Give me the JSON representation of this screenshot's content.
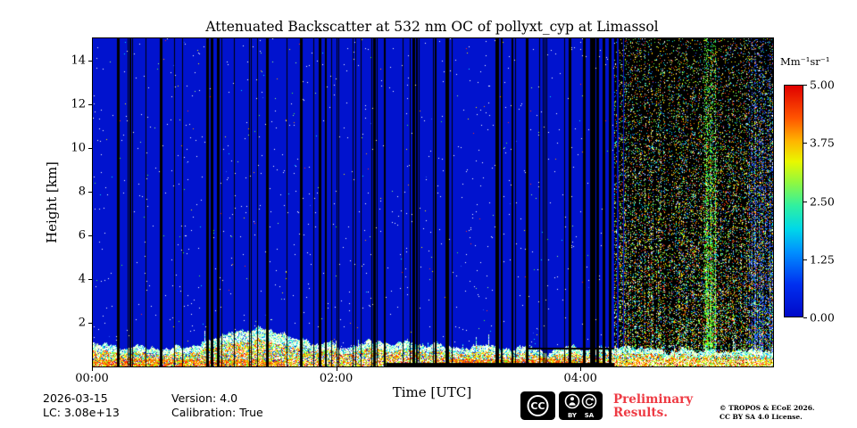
{
  "title": "Attenuated Backscatter at 532 nm OC of pollyxt_cyp at Limassol",
  "chart_data": {
    "type": "heatmap",
    "title": "Attenuated Backscatter at 532 nm OC of pollyxt_cyp at Limassol",
    "xlabel": "Time [UTC]",
    "ylabel": "Height [km]",
    "x_ticks": [
      {
        "label": "00:00",
        "hours": 0
      },
      {
        "label": "02:00",
        "hours": 2
      },
      {
        "label": "04:00",
        "hours": 4
      }
    ],
    "x_range_hours": [
      0,
      5.57
    ],
    "y_ticks": [
      2,
      4,
      6,
      8,
      10,
      12,
      14
    ],
    "ylim": [
      0,
      15
    ],
    "grid": false,
    "legend": "colorbar-right",
    "colorbar": {
      "label": "Mm⁻¹sr⁻¹",
      "range": [
        0,
        5
      ],
      "colormap": "jet",
      "ticks": [
        {
          "label": "5.00",
          "value": 5.0
        },
        {
          "label": "3.75",
          "value": 3.75
        },
        {
          "label": "2.50",
          "value": 2.5
        },
        {
          "label": "1.25",
          "value": 1.25
        },
        {
          "label": "0.00",
          "value": 0.0
        }
      ],
      "gradient_stops": [
        {
          "pos": 0.0,
          "color": "#0009c8"
        },
        {
          "pos": 0.14,
          "color": "#0030f0"
        },
        {
          "pos": 0.28,
          "color": "#0090ff"
        },
        {
          "pos": 0.38,
          "color": "#00d8e8"
        },
        {
          "pos": 0.48,
          "color": "#30f0a0"
        },
        {
          "pos": 0.58,
          "color": "#90f840"
        },
        {
          "pos": 0.67,
          "color": "#e8f800"
        },
        {
          "pos": 0.76,
          "color": "#ffb400"
        },
        {
          "pos": 0.86,
          "color": "#ff5400"
        },
        {
          "pos": 1.0,
          "color": "#e00000"
        }
      ]
    },
    "features": {
      "background_value_mm_sr": 0.0,
      "aerosol_layer": {
        "description": "Near-surface aerosol/cloud layer below ~1-2 km: white high-backscatter tops, red/orange values near ground, strongest on left (00:00-01:00) and around 02:30-03:30",
        "top_km_min": 0.5,
        "top_km_max": 2.2
      },
      "data_gaps": {
        "description": "Thin vertical black no-data stripes between 00:00 and ~04:20, with a thick cluster near 01:00",
        "thick_positions_hours": [
          0.2,
          0.55,
          0.93,
          0.97,
          1.02,
          1.42,
          1.7,
          1.85,
          2.3,
          2.62,
          2.9,
          3.3,
          3.55,
          3.9,
          4.02,
          4.1
        ],
        "thin_count": 46
      },
      "dark_overlap_strip": {
        "start_hours": 2.4,
        "end_hours": 4.27,
        "height_km": 0.16
      },
      "dark_horizontal_line": {
        "start_hours": 3.55,
        "end_hours": 4.27,
        "height_km": 0.85
      },
      "daylight_noise_region": {
        "description": "Daylight/noise dominated right part: dense multicoloured speckle on black background, green column cluster near 05:00, bluish speckle near right edge",
        "start_hours": 4.27,
        "end_hours": 5.57
      }
    },
    "render": {
      "seed": 1337,
      "background_color": "#0113ce",
      "speckle_count": 1050,
      "noise_palette": [
        "#ffffff",
        "#ff3020",
        "#ff9800",
        "#fff200",
        "#50ff30",
        "#00e0ff",
        "#2858ff",
        "#a0ff80"
      ],
      "layer_palettes": {
        "top": [
          "#ffffff",
          "#ffffff",
          "#ffffff",
          "#c0ffe8",
          "#60ffb0",
          "#00c8ff",
          "#ffff80"
        ],
        "mid": [
          "#ffffff",
          "#ffffff",
          "#80ff40",
          "#ffff00",
          "#ff9000",
          "#ff3000",
          "#00d0ff"
        ],
        "ground_hot": [
          "#ff2800",
          "#ff2800",
          "#ff8c00",
          "#ff8c00",
          "#ffff00",
          "#ffffff",
          "#60ff30"
        ],
        "ground": [
          "#ffffff",
          "#80ff40",
          "#ffff00",
          "#ff9000",
          "#ff3000",
          "#ffffff"
        ]
      }
    }
  },
  "footer": {
    "date": "2026-03-15",
    "lc": "LC: 3.08e+13",
    "version": "Version: 4.0",
    "calibration": "Calibration: True",
    "preliminary_line1": "Preliminary",
    "preliminary_line2": "Results.",
    "preliminary_color": "#ee3a43",
    "copyright_line1": "© TROPOS & ECoE 2026.",
    "copyright_line2": "CC BY SA 4.0 License.",
    "cc_badge": {
      "cc_label": "CC",
      "by_label": "BY",
      "sa_label": "SA"
    }
  }
}
